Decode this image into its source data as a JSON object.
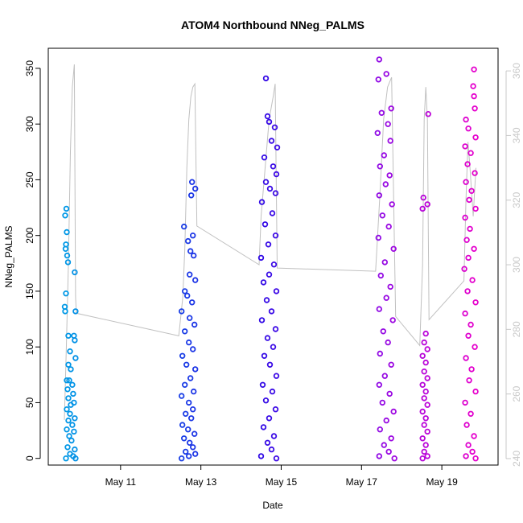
{
  "chart_data": {
    "type": "scatter",
    "title": "ATOM4 Northbound NNeg_PALMS",
    "xlabel": "Date",
    "ylabel": "NNeg_PALMS",
    "x_ticks": [
      "May 11",
      "May 13",
      "May 15",
      "May 17",
      "May 19"
    ],
    "x_tick_values": [
      11,
      13,
      15,
      17,
      19
    ],
    "xlim": [
      9.2,
      20.4
    ],
    "y_ticks": [
      0,
      50,
      100,
      150,
      200,
      250,
      300,
      350
    ],
    "ylim": [
      -6,
      368
    ],
    "y2_ticks": [
      240,
      260,
      280,
      300,
      320,
      340,
      360
    ],
    "y2lim": [
      238,
      367
    ],
    "grid": false,
    "points_color_start": "#0099e6",
    "points_color_end": "#e600cc",
    "line_color": "#c0c0c0",
    "clusters": [
      {
        "x_start": 9.6,
        "x_end": 9.9,
        "seed": 11,
        "points": [
          [
            9.65,
            224
          ],
          [
            9.62,
            218
          ],
          [
            9.66,
            203
          ],
          [
            9.64,
            192
          ],
          [
            9.63,
            188
          ],
          [
            9.67,
            182
          ],
          [
            9.69,
            176
          ],
          [
            9.86,
            167
          ],
          [
            9.64,
            148
          ],
          [
            9.61,
            136
          ],
          [
            9.62,
            132
          ],
          [
            9.88,
            132
          ],
          [
            9.7,
            110
          ],
          [
            9.84,
            110
          ],
          [
            9.86,
            106
          ],
          [
            9.74,
            96
          ],
          [
            9.88,
            90
          ],
          [
            9.7,
            84
          ],
          [
            9.76,
            80
          ],
          [
            9.66,
            70
          ],
          [
            9.72,
            70
          ],
          [
            9.8,
            66
          ],
          [
            9.68,
            62
          ],
          [
            9.82,
            58
          ],
          [
            9.7,
            54
          ],
          [
            9.84,
            50
          ],
          [
            9.76,
            48
          ],
          [
            9.66,
            44
          ],
          [
            9.74,
            40
          ],
          [
            9.86,
            36
          ],
          [
            9.7,
            34
          ],
          [
            9.8,
            30
          ],
          [
            9.66,
            26
          ],
          [
            9.84,
            24
          ],
          [
            9.72,
            20
          ],
          [
            9.78,
            16
          ],
          [
            9.68,
            10
          ],
          [
            9.86,
            8
          ],
          [
            9.74,
            4
          ],
          [
            9.82,
            2
          ],
          [
            9.64,
            0
          ],
          [
            9.88,
            0
          ]
        ]
      },
      {
        "x_start": 12.5,
        "x_end": 12.85,
        "seed": 13,
        "points": [
          [
            12.78,
            248
          ],
          [
            12.86,
            242
          ],
          [
            12.76,
            236
          ],
          [
            12.58,
            208
          ],
          [
            12.8,
            200
          ],
          [
            12.68,
            195
          ],
          [
            12.74,
            186
          ],
          [
            12.82,
            182
          ],
          [
            12.72,
            165
          ],
          [
            12.86,
            160
          ],
          [
            12.6,
            150
          ],
          [
            12.66,
            146
          ],
          [
            12.78,
            140
          ],
          [
            12.52,
            132
          ],
          [
            12.72,
            126
          ],
          [
            12.84,
            120
          ],
          [
            12.6,
            114
          ],
          [
            12.7,
            104
          ],
          [
            12.8,
            98
          ],
          [
            12.54,
            92
          ],
          [
            12.64,
            84
          ],
          [
            12.86,
            80
          ],
          [
            12.74,
            72
          ],
          [
            12.6,
            66
          ],
          [
            12.82,
            60
          ],
          [
            12.52,
            56
          ],
          [
            12.7,
            50
          ],
          [
            12.8,
            44
          ],
          [
            12.62,
            40
          ],
          [
            12.76,
            36
          ],
          [
            12.54,
            30
          ],
          [
            12.68,
            26
          ],
          [
            12.84,
            22
          ],
          [
            12.58,
            18
          ],
          [
            12.72,
            14
          ],
          [
            12.8,
            10
          ],
          [
            12.62,
            6
          ],
          [
            12.86,
            4
          ],
          [
            12.7,
            2
          ],
          [
            12.52,
            0
          ]
        ]
      },
      {
        "x_start": 14.45,
        "x_end": 14.9,
        "seed": 17,
        "points": [
          [
            14.62,
            341
          ],
          [
            14.66,
            307
          ],
          [
            14.7,
            302
          ],
          [
            14.84,
            297
          ],
          [
            14.76,
            285
          ],
          [
            14.9,
            279
          ],
          [
            14.58,
            270
          ],
          [
            14.8,
            262
          ],
          [
            14.88,
            255
          ],
          [
            14.62,
            248
          ],
          [
            14.72,
            242
          ],
          [
            14.86,
            238
          ],
          [
            14.52,
            230
          ],
          [
            14.78,
            220
          ],
          [
            14.6,
            210
          ],
          [
            14.86,
            200
          ],
          [
            14.68,
            192
          ],
          [
            14.5,
            180
          ],
          [
            14.82,
            174
          ],
          [
            14.7,
            165
          ],
          [
            14.56,
            158
          ],
          [
            14.88,
            150
          ],
          [
            14.64,
            142
          ],
          [
            14.76,
            132
          ],
          [
            14.52,
            124
          ],
          [
            14.86,
            116
          ],
          [
            14.66,
            108
          ],
          [
            14.8,
            100
          ],
          [
            14.58,
            92
          ],
          [
            14.72,
            84
          ],
          [
            14.88,
            74
          ],
          [
            14.54,
            66
          ],
          [
            14.78,
            60
          ],
          [
            14.62,
            52
          ],
          [
            14.86,
            44
          ],
          [
            14.7,
            36
          ],
          [
            14.56,
            28
          ],
          [
            14.82,
            20
          ],
          [
            14.66,
            14
          ],
          [
            14.76,
            8
          ],
          [
            14.5,
            2
          ],
          [
            14.88,
            0
          ]
        ]
      },
      {
        "x_start": 17.35,
        "x_end": 17.85,
        "seed": 19,
        "points": [
          [
            17.44,
            358
          ],
          [
            17.62,
            345
          ],
          [
            17.42,
            340
          ],
          [
            17.74,
            314
          ],
          [
            17.5,
            310
          ],
          [
            17.66,
            300
          ],
          [
            17.4,
            292
          ],
          [
            17.72,
            285
          ],
          [
            17.56,
            272
          ],
          [
            17.46,
            262
          ],
          [
            17.7,
            254
          ],
          [
            17.6,
            246
          ],
          [
            17.44,
            236
          ],
          [
            17.76,
            228
          ],
          [
            17.52,
            218
          ],
          [
            17.68,
            208
          ],
          [
            17.42,
            198
          ],
          [
            17.8,
            188
          ],
          [
            17.58,
            176
          ],
          [
            17.48,
            164
          ],
          [
            17.72,
            154
          ],
          [
            17.62,
            144
          ],
          [
            17.44,
            134
          ],
          [
            17.78,
            124
          ],
          [
            17.54,
            114
          ],
          [
            17.66,
            104
          ],
          [
            17.46,
            94
          ],
          [
            17.74,
            84
          ],
          [
            17.58,
            74
          ],
          [
            17.44,
            66
          ],
          [
            17.7,
            58
          ],
          [
            17.52,
            50
          ],
          [
            17.8,
            42
          ],
          [
            17.62,
            34
          ],
          [
            17.46,
            26
          ],
          [
            17.74,
            18
          ],
          [
            17.56,
            12
          ],
          [
            17.68,
            6
          ],
          [
            17.44,
            2
          ],
          [
            17.82,
            0
          ]
        ]
      },
      {
        "x_start": 18.5,
        "x_end": 18.65,
        "seed": 23,
        "points": [
          [
            18.66,
            309
          ],
          [
            18.54,
            234
          ],
          [
            18.64,
            228
          ],
          [
            18.52,
            224
          ],
          [
            18.6,
            112
          ],
          [
            18.56,
            104
          ],
          [
            18.64,
            98
          ],
          [
            18.52,
            92
          ],
          [
            18.6,
            86
          ],
          [
            18.56,
            78
          ],
          [
            18.64,
            72
          ],
          [
            18.52,
            66
          ],
          [
            18.6,
            60
          ],
          [
            18.56,
            54
          ],
          [
            18.64,
            48
          ],
          [
            18.52,
            42
          ],
          [
            18.6,
            36
          ],
          [
            18.56,
            30
          ],
          [
            18.64,
            24
          ],
          [
            18.52,
            18
          ],
          [
            18.6,
            12
          ],
          [
            18.56,
            6
          ],
          [
            18.64,
            2
          ],
          [
            18.52,
            0
          ]
        ]
      },
      {
        "x_start": 19.55,
        "x_end": 19.85,
        "seed": 29,
        "points": [
          [
            19.8,
            349
          ],
          [
            19.78,
            334
          ],
          [
            19.8,
            325
          ],
          [
            19.82,
            314
          ],
          [
            19.6,
            304
          ],
          [
            19.66,
            296
          ],
          [
            19.84,
            288
          ],
          [
            19.58,
            280
          ],
          [
            19.72,
            274
          ],
          [
            19.64,
            264
          ],
          [
            19.82,
            256
          ],
          [
            19.6,
            248
          ],
          [
            19.74,
            240
          ],
          [
            19.68,
            232
          ],
          [
            19.84,
            224
          ],
          [
            19.58,
            216
          ],
          [
            19.7,
            206
          ],
          [
            19.62,
            196
          ],
          [
            19.8,
            188
          ],
          [
            19.66,
            180
          ],
          [
            19.56,
            170
          ],
          [
            19.76,
            160
          ],
          [
            19.64,
            150
          ],
          [
            19.84,
            140
          ],
          [
            19.58,
            130
          ],
          [
            19.72,
            120
          ],
          [
            19.66,
            110
          ],
          [
            19.82,
            100
          ],
          [
            19.6,
            90
          ],
          [
            19.74,
            80
          ],
          [
            19.68,
            70
          ],
          [
            19.84,
            60
          ],
          [
            19.58,
            50
          ],
          [
            19.72,
            40
          ],
          [
            19.62,
            30
          ],
          [
            19.8,
            20
          ],
          [
            19.66,
            12
          ],
          [
            19.76,
            6
          ],
          [
            19.6,
            2
          ],
          [
            19.84,
            0
          ]
        ]
      }
    ],
    "line_y2": [
      [
        9.6,
        252
      ],
      [
        9.65,
        275
      ],
      [
        9.7,
        300
      ],
      [
        9.75,
        335
      ],
      [
        9.8,
        355
      ],
      [
        9.85,
        362
      ],
      [
        9.88,
        290
      ],
      [
        9.9,
        285
      ],
      [
        12.45,
        278
      ],
      [
        12.55,
        290
      ],
      [
        12.6,
        305
      ],
      [
        12.65,
        330
      ],
      [
        12.7,
        345
      ],
      [
        12.75,
        352
      ],
      [
        12.8,
        355
      ],
      [
        12.85,
        356
      ],
      [
        12.9,
        312
      ],
      [
        14.45,
        300
      ],
      [
        14.5,
        315
      ],
      [
        14.6,
        330
      ],
      [
        14.7,
        345
      ],
      [
        14.8,
        352
      ],
      [
        14.85,
        356
      ],
      [
        14.9,
        299
      ],
      [
        17.35,
        298
      ],
      [
        17.45,
        320
      ],
      [
        17.55,
        345
      ],
      [
        17.65,
        355
      ],
      [
        17.75,
        358
      ],
      [
        17.85,
        284
      ],
      [
        18.45,
        275
      ],
      [
        18.52,
        300
      ],
      [
        18.56,
        345
      ],
      [
        18.6,
        355
      ],
      [
        18.64,
        345
      ],
      [
        18.68,
        283
      ],
      [
        19.55,
        295
      ],
      [
        19.6,
        320
      ],
      [
        19.65,
        338
      ],
      [
        19.7,
        330
      ],
      [
        19.78,
        315
      ],
      [
        19.85,
        330
      ]
    ]
  }
}
